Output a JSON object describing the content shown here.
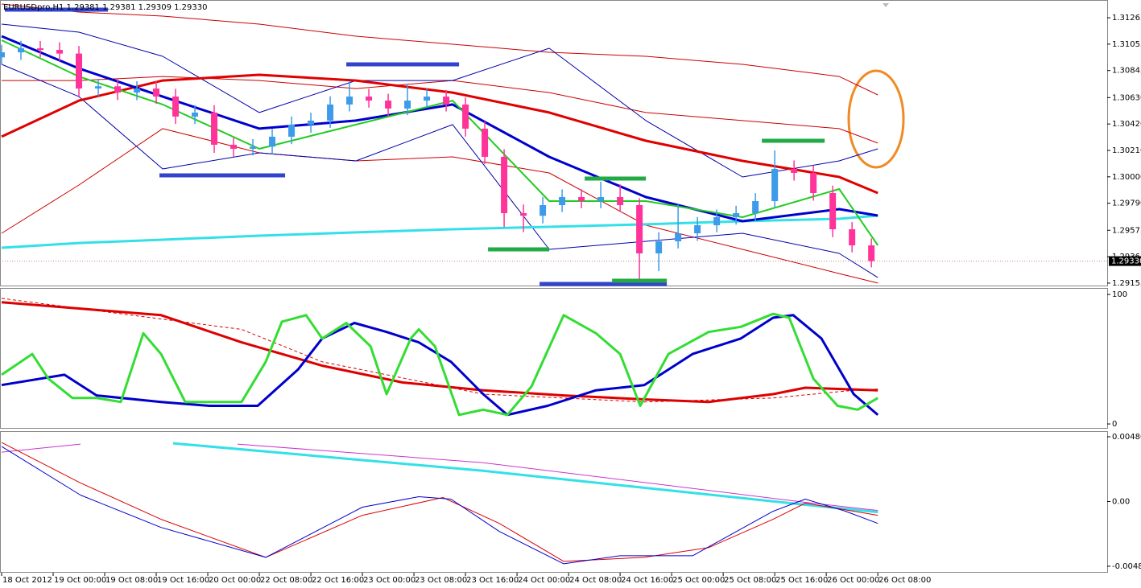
{
  "chart_data": [
    {
      "type": "candlestick",
      "title": "EURUSDpro,H1  1.29381 1.29381 1.29309 1.29330",
      "xlim": [
        -0.25,
        171.6
      ],
      "ylim": [
        1.29129,
        1.31406
      ],
      "yticks": [
        1.31265,
        1.31055,
        1.30845,
        {
          "value": 1.3063,
          "label": "1.30630"
        },
        {
          "value": 1.3042,
          "label": "1.30420"
        },
        {
          "value": 1.3021,
          "label": "1.30210"
        },
        {
          "value": 1.3,
          "label": "1.30000"
        },
        {
          "value": 1.2979,
          "label": "1.29790"
        },
        1.29575,
        1.29365,
        1.29155
      ],
      "last_price": {
        "value": 1.2933,
        "label": "1.29330"
      },
      "up_color": "#3d9be9",
      "down_color": "#ff3399",
      "x": [
        0,
        3,
        6,
        9,
        12,
        15,
        18,
        21,
        24,
        27,
        30,
        33,
        36,
        39,
        42,
        45,
        48,
        51,
        54,
        57,
        60,
        63,
        66,
        69,
        72,
        75,
        78,
        81,
        84,
        87,
        90,
        93,
        96,
        99,
        102,
        105,
        108,
        111,
        114,
        117,
        120,
        123,
        126,
        129,
        132,
        135
      ],
      "open": [
        1.3095,
        1.3099,
        1.31022,
        1.31009,
        1.3098,
        1.30702,
        1.3072,
        1.3067,
        1.30702,
        1.30638,
        1.30479,
        1.30511,
        1.30255,
        1.30223,
        1.3024,
        1.30319,
        1.30415,
        1.30447,
        1.30575,
        1.30638,
        1.30606,
        1.30543,
        1.30606,
        1.30638,
        1.30575,
        1.30383,
        1.30159,
        1.29711,
        1.2969,
        1.29775,
        1.29839,
        1.29807,
        1.29839,
        1.29775,
        1.29391,
        1.29487,
        1.29551,
        1.29615,
        1.29679,
        1.29711,
        1.29807,
        1.30063,
        1.30031,
        1.29871,
        1.29583,
        1.29455
      ],
      "high": [
        1.3105,
        1.31082,
        1.3108,
        1.3107,
        1.3104,
        1.3078,
        1.3078,
        1.3076,
        1.3076,
        1.307,
        1.3057,
        1.3057,
        1.3031,
        1.303,
        1.3038,
        1.3048,
        1.3051,
        1.3064,
        1.3076,
        1.307,
        1.3066,
        1.3074,
        1.307,
        1.3069,
        1.3063,
        1.3044,
        1.3022,
        1.2978,
        1.2984,
        1.299,
        1.299,
        1.2996,
        1.2994,
        1.2983,
        1.2956,
        1.2978,
        1.2968,
        1.2974,
        1.2977,
        1.2987,
        1.3021,
        1.3013,
        1.3009,
        1.2993,
        1.2964,
        1.2951
      ],
      "low": [
        1.3089,
        1.3093,
        1.3095,
        1.3092,
        1.3064,
        1.3064,
        1.3061,
        1.3061,
        1.3058,
        1.3042,
        1.3042,
        1.3019,
        1.3016,
        1.3017,
        1.3018,
        1.3026,
        1.3035,
        1.3039,
        1.3052,
        1.3055,
        1.3048,
        1.3049,
        1.3055,
        1.3052,
        1.3032,
        1.301,
        1.296,
        1.2956,
        1.2963,
        1.2972,
        1.2975,
        1.2975,
        1.2972,
        1.2918,
        1.2925,
        1.2943,
        1.2949,
        1.2956,
        1.2962,
        1.2965,
        1.2975,
        1.2997,
        1.2981,
        1.2952,
        1.294,
        1.2928
      ],
      "close": [
        1.3099,
        1.31022,
        1.31009,
        1.3098,
        1.30702,
        1.3072,
        1.3067,
        1.30702,
        1.30638,
        1.30479,
        1.30511,
        1.30255,
        1.30223,
        1.3024,
        1.30319,
        1.30415,
        1.30447,
        1.30575,
        1.30638,
        1.30606,
        1.30543,
        1.30606,
        1.30638,
        1.30575,
        1.30383,
        1.30159,
        1.29711,
        1.2969,
        1.29775,
        1.29839,
        1.29807,
        1.29839,
        1.29775,
        1.29391,
        1.29487,
        1.29551,
        1.29615,
        1.29679,
        1.29711,
        1.29807,
        1.30063,
        1.30031,
        1.29871,
        1.29583,
        1.29455,
        1.2933
      ],
      "series": [
        {
          "color": "#cc0000",
          "width": 1,
          "x": [
            0,
            12,
            25,
            40,
            55,
            70,
            85,
            100,
            115,
            130,
            136
          ],
          "values": [
            1.31374,
            1.3131,
            1.31278,
            1.31214,
            1.31118,
            1.31054,
            1.3099,
            1.30958,
            1.30894,
            1.30798,
            1.30651
          ]
        },
        {
          "color": "#cc0000",
          "width": 1,
          "x": [
            0,
            12,
            25,
            40,
            55,
            70,
            85,
            100,
            115,
            130,
            136
          ],
          "values": [
            1.30766,
            1.30766,
            1.30798,
            1.30766,
            1.30702,
            1.30766,
            1.3067,
            1.30511,
            1.30447,
            1.30383,
            1.30268
          ]
        },
        {
          "color": "#cc0000",
          "width": 1,
          "x": [
            0,
            12,
            25,
            40,
            55,
            70,
            85,
            100,
            115,
            130,
            136
          ],
          "values": [
            1.29551,
            1.29935,
            1.30383,
            1.30191,
            1.30127,
            1.30159,
            1.30031,
            1.29615,
            1.29423,
            1.29231,
            1.29155
          ]
        },
        {
          "color": "#0000aa",
          "width": 1,
          "x": [
            0,
            12,
            25,
            40,
            55,
            70,
            85,
            100,
            115,
            130,
            136
          ],
          "values": [
            1.31214,
            1.3115,
            1.30958,
            1.30511,
            1.30766,
            1.30766,
            1.31022,
            1.30447,
            1.29999,
            1.30127,
            1.30223
          ]
        },
        {
          "color": "#0000aa",
          "width": 1,
          "x": [
            0,
            12,
            25,
            40,
            55,
            70,
            85,
            100,
            115,
            130,
            136
          ],
          "values": [
            1.30894,
            1.30638,
            1.30063,
            1.30191,
            1.30127,
            1.30415,
            1.29423,
            1.29487,
            1.29551,
            1.29391,
            1.29199
          ]
        },
        {
          "color": "#33e0e8",
          "width": 3,
          "x": [
            0,
            12,
            25,
            40,
            55,
            70,
            85,
            100,
            115,
            130,
            136
          ],
          "values": [
            1.29436,
            1.29474,
            1.295,
            1.29532,
            1.29558,
            1.29583,
            1.29602,
            1.29622,
            1.29647,
            1.29666,
            1.29692
          ]
        },
        {
          "color": "#e00000",
          "width": 3,
          "x": [
            0,
            12,
            25,
            40,
            55,
            70,
            85,
            100,
            115,
            130,
            136
          ],
          "values": [
            1.30319,
            1.30606,
            1.30766,
            1.30811,
            1.30766,
            1.3067,
            1.30511,
            1.30287,
            1.30127,
            1.29999,
            1.29871
          ]
        },
        {
          "color": "#0000cc",
          "width": 3,
          "x": [
            0,
            12,
            25,
            40,
            55,
            70,
            85,
            100,
            115,
            130,
            136
          ],
          "values": [
            1.31118,
            1.30862,
            1.30638,
            1.30383,
            1.30447,
            1.30575,
            1.30159,
            1.29839,
            1.29647,
            1.29743,
            1.29692
          ]
        },
        {
          "color": "#22cc22",
          "width": 2,
          "x": [
            0,
            12,
            25,
            40,
            55,
            70,
            85,
            100,
            115,
            130,
            136
          ],
          "values": [
            1.31086,
            1.30798,
            1.30575,
            1.30223,
            1.30415,
            1.30606,
            1.29807,
            1.29807,
            1.29679,
            1.29903,
            1.29455
          ]
        }
      ],
      "levels": [
        {
          "color": "#3344cc",
          "x": [
            0.5,
            16.5
          ],
          "value": 1.31329
        },
        {
          "color": "#3344cc",
          "x": [
            53.5,
            71
          ],
          "value": 1.30894
        },
        {
          "color": "#3344cc",
          "x": [
            24.5,
            44
          ],
          "value": 1.30012
        },
        {
          "color": "#22aa44",
          "x": [
            75.5,
            85
          ],
          "value": 1.29423
        },
        {
          "color": "#22aa44",
          "x": [
            90.5,
            100
          ],
          "value": 1.29986
        },
        {
          "color": "#22aa44",
          "x": [
            118,
            127.75
          ],
          "value": 1.30287
        },
        {
          "color": "#3344cc",
          "x": [
            83.5,
            103.25
          ],
          "value": 1.29148
        },
        {
          "color": "#22aa44",
          "x": [
            94.75,
            103.25
          ],
          "value": 1.29174
        }
      ]
    },
    {
      "type": "line",
      "xlim": [
        -0.25,
        171.6
      ],
      "ylim": [
        -3.7,
        105
      ],
      "yticks": [
        100,
        0
      ],
      "series": [
        {
          "color": "#dd0000",
          "width": 1,
          "dash": true,
          "x": [
            0,
            37.25,
            49.75,
            74.75,
            99.75,
            119.75,
            132.25,
            136
          ],
          "values": [
            97,
            73,
            48,
            23,
            17,
            20,
            26,
            27
          ]
        },
        {
          "color": "#dd0000",
          "width": 3,
          "x": [
            0,
            24.75,
            37.25,
            49.75,
            62.25,
            74.75,
            87.25,
            99.75,
            109.75,
            119.75,
            124.75,
            136
          ],
          "values": [
            94,
            84,
            63,
            45,
            32,
            26,
            22,
            19,
            17,
            23,
            28,
            26
          ]
        },
        {
          "color": "#0000cc",
          "width": 3,
          "x": [
            0,
            9.75,
            14.75,
            24.75,
            32.25,
            39.75,
            46,
            49.75,
            54.75,
            59.75,
            64.75,
            69.75,
            74.75,
            78.5,
            84.75,
            92.25,
            99.75,
            107.25,
            114.75,
            119.75,
            122.875,
            127.25,
            132.25,
            136
          ],
          "values": [
            30,
            38,
            22,
            17,
            14,
            14,
            42,
            66,
            78,
            71,
            63,
            48,
            23,
            7,
            14,
            26,
            30,
            54,
            66,
            82,
            84,
            66,
            23,
            7
          ]
        },
        {
          "color": "#33dd33",
          "width": 3,
          "x": [
            0,
            4.75,
            7.25,
            11,
            14.75,
            18.5,
            22,
            24.75,
            28.5,
            32.25,
            37.25,
            41,
            43.5,
            47.25,
            49.75,
            53.5,
            57.25,
            59.75,
            63.5,
            64.75,
            67.25,
            71,
            74.75,
            78.5,
            82.25,
            87.25,
            92.25,
            96,
            99.125,
            103.5,
            109.75,
            114.75,
            119.75,
            122.25,
            126,
            129.75,
            132.875,
            136
          ],
          "values": [
            38,
            54,
            35,
            20,
            20,
            17,
            70,
            54,
            17,
            17,
            17,
            48,
            79,
            84,
            66,
            78,
            60,
            23,
            66,
            73,
            60,
            7,
            11,
            7,
            29,
            84,
            70,
            54,
            14,
            54,
            71,
            75,
            85,
            82,
            35,
            14,
            11,
            20
          ]
        }
      ]
    },
    {
      "type": "line",
      "xlim": [
        -0.25,
        171.6
      ],
      "ylim": [
        -0.00528,
        0.00522
      ],
      "yticks": [
        0.004803,
        {
          "value": 0,
          "label": "0.00"
        },
        {
          "value": -0.0048,
          "label": "-0.00480"
        }
      ],
      "xticks": [
        {
          "value": 0,
          "label": "18 Oct 2012"
        },
        {
          "value": 8,
          "label": "19 Oct 00:00"
        },
        {
          "value": 16,
          "label": "19 Oct 08:00"
        },
        {
          "value": 24,
          "label": "19 Oct 16:00"
        },
        {
          "value": 32,
          "label": "20 Oct 00:00"
        },
        {
          "value": 40,
          "label": "22 Oct 08:00"
        },
        {
          "value": 48,
          "label": "22 Oct 16:00"
        },
        {
          "value": 56,
          "label": "23 Oct 00:00"
        },
        {
          "value": 64,
          "label": "23 Oct 08:00"
        },
        {
          "value": 72,
          "label": "23 Oct 16:00"
        },
        {
          "value": 80,
          "label": "24 Oct 00:00"
        },
        {
          "value": 88,
          "label": "24 Oct 08:00"
        },
        {
          "value": 96,
          "label": "24 Oct 16:00"
        },
        {
          "value": 104,
          "label": "25 Oct 00:00"
        },
        {
          "value": 112,
          "label": "25 Oct 08:00"
        },
        {
          "value": 120,
          "label": "25 Oct 16:00"
        },
        {
          "value": 128,
          "label": "26 Oct 00:00"
        },
        {
          "value": 136,
          "label": "26 Oct 08:00"
        }
      ],
      "series": [
        {
          "color": "#cc33cc",
          "width": 1,
          "x": [
            0,
            12.25,
            24,
            36.625,
            74.75,
            124.75,
            136
          ],
          "values": [
            0.00366,
            0.00426,
            null,
            0.00426,
            0.00288,
            -6e-05,
            -0.00066
          ]
        },
        {
          "color": "#33e0e8",
          "width": 3,
          "x": [
            26.625,
            74.75,
            124.75,
            136
          ],
          "values": [
            0.00432,
            0.00228,
            -0.00024,
            -0.00078
          ]
        },
        {
          "color": "#dd0000",
          "width": 1,
          "x": [
            0,
            12.25,
            24.75,
            41,
            56,
            68.5,
            77.25,
            87.25,
            99.75,
            109.75,
            119.75,
            124.75,
            136
          ],
          "values": [
            0.00438,
            0.00138,
            -0.00132,
            -0.00414,
            -0.00102,
            0.0003,
            -0.00162,
            -0.00444,
            -0.00414,
            -0.00342,
            -0.00132,
            -0.00012,
            -0.00102
          ]
        },
        {
          "color": "#0000cc",
          "width": 1,
          "x": [
            0,
            12.25,
            24.75,
            41,
            56,
            64.75,
            69.75,
            77.25,
            87.25,
            96,
            107.25,
            119.75,
            124.75,
            131,
            136
          ],
          "values": [
            0.00408,
            0.00048,
            -0.00192,
            -0.00414,
            -0.00042,
            0.00036,
            0.00018,
            -0.00222,
            -0.00462,
            -0.00402,
            -0.00402,
            -0.00072,
            0.00018,
            -0.00072,
            -0.00162
          ]
        }
      ]
    }
  ]
}
